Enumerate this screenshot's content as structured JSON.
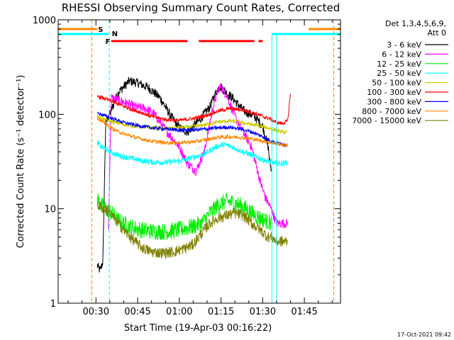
{
  "chart_data": {
    "type": "line",
    "title": "RHESSI Observing Summary Count Rates, Corrected",
    "xlabel": "Start Time (19-Apr-03 00:16:22)",
    "ylabel": "Corrected Count Rate (s⁻¹ detector⁻¹)",
    "yscale": "log",
    "ylim": [
      1,
      1000
    ],
    "xlim_minutes": [
      16.4,
      118.0
    ],
    "x_ticks": [
      {
        "t": 30,
        "label": "00:30"
      },
      {
        "t": 45,
        "label": "00:45"
      },
      {
        "t": 60,
        "label": "01:00"
      },
      {
        "t": 75,
        "label": "01:15"
      },
      {
        "t": 90,
        "label": "01:30"
      },
      {
        "t": 105,
        "label": "01:45"
      }
    ],
    "y_ticks": [
      {
        "v": 1,
        "label": "1"
      },
      {
        "v": 10,
        "label": "10"
      },
      {
        "v": 100,
        "label": "100"
      },
      {
        "v": 1000,
        "label": "1000"
      }
    ],
    "legend": {
      "header": [
        "Det 1,3,4,5,6,9,",
        "Att 0"
      ],
      "placement": "right"
    },
    "flag_labels": {
      "saa": "S",
      "night": "N",
      "flare": "F"
    },
    "flags": {
      "saa": [
        [
          16.4,
          30.5
        ],
        [
          106.5,
          118.0
        ]
      ],
      "night": [
        [
          16.4,
          34.5
        ],
        [
          93.3,
          118.0
        ]
      ],
      "flare": [
        [
          35.5,
          63.0
        ],
        [
          67.0,
          87.0
        ],
        [
          88.5,
          90.0
        ]
      ],
      "saa_boundaries": [
        28.5,
        115.6
      ],
      "night_boundaries": [
        34.8
      ],
      "night_solid_lines": [
        93.3,
        95.0
      ]
    },
    "series": [
      {
        "name": "3 - 6 keV",
        "color": "#000000",
        "noise": 0.05,
        "x": [
          30.5,
          31.5,
          32.5,
          33.5,
          34.5,
          35.5,
          38,
          42,
          45,
          49,
          53,
          57,
          60,
          63,
          67,
          71,
          73,
          74.5,
          76,
          79,
          83,
          87,
          90,
          92,
          92.5,
          93.2
        ],
        "y": [
          2.5,
          2.2,
          2.8,
          80,
          95,
          110,
          170,
          225,
          215,
          190,
          150,
          95,
          72,
          65,
          85,
          120,
          165,
          200,
          180,
          150,
          110,
          95,
          75,
          45,
          32,
          25
        ]
      },
      {
        "name": "6 - 12 keV",
        "color": "#ff00ff",
        "noise": 0.05,
        "x": [
          34.5,
          35.5,
          37,
          40,
          44,
          48,
          51,
          54,
          57,
          60,
          63,
          66,
          69,
          72,
          74,
          75,
          77,
          80,
          83,
          86,
          89,
          91,
          93,
          95,
          97.5,
          99
        ],
        "y": [
          6,
          150,
          145,
          135,
          120,
          115,
          100,
          75,
          58,
          45,
          30,
          25,
          40,
          115,
          185,
          195,
          160,
          95,
          65,
          45,
          20,
          13,
          10,
          7,
          7,
          7
        ]
      },
      {
        "name": "12 - 25 keV",
        "color": "#00ee00",
        "noise": 0.09,
        "x": [
          30.5,
          31.5,
          33.5,
          35.5,
          38,
          42,
          46,
          50,
          55,
          60,
          65,
          68,
          71,
          74,
          77,
          80,
          83,
          86,
          89,
          91,
          93.2
        ],
        "y": [
          13,
          11,
          10,
          9,
          7.5,
          6.5,
          6,
          5.8,
          5.7,
          6,
          6.5,
          7,
          9,
          11,
          12,
          11.5,
          10.5,
          9,
          8,
          7.5,
          7
        ]
      },
      {
        "name": "25 - 50 keV",
        "color": "#00ffff",
        "noise": 0.03,
        "x": [
          30.5,
          32,
          34,
          36,
          39,
          43,
          47,
          51,
          55,
          60,
          65,
          69,
          73,
          76,
          79,
          83,
          87,
          90,
          93.2,
          96,
          99
        ],
        "y": [
          50,
          45,
          42,
          39,
          36,
          34,
          32,
          31,
          31,
          32,
          35,
          38,
          45,
          48,
          45,
          40,
          36,
          33,
          31,
          30,
          31
        ]
      },
      {
        "name": "50 - 100 keV",
        "color": "#cccc00",
        "noise": 0.02,
        "x": [
          30.5,
          33,
          36,
          40,
          45,
          50,
          55,
          60,
          65,
          70,
          74,
          78,
          82,
          86,
          90,
          93.2,
          96,
          99
        ],
        "y": [
          95,
          88,
          83,
          78,
          74,
          72,
          71,
          72,
          74,
          78,
          83,
          85,
          82,
          78,
          74,
          70,
          66,
          64
        ]
      },
      {
        "name": "100 - 300 keV",
        "color": "#ff0000",
        "noise": 0.02,
        "x": [
          30.5,
          32,
          35,
          38,
          42,
          46,
          50,
          55,
          60,
          65,
          70,
          74,
          78,
          82,
          86,
          90,
          93.2,
          95,
          97,
          99,
          100
        ],
        "y": [
          155,
          150,
          140,
          128,
          115,
          105,
          95,
          88,
          86,
          90,
          98,
          108,
          115,
          112,
          105,
          95,
          88,
          82,
          80,
          85,
          170
        ]
      },
      {
        "name": "300 - 800 keV",
        "color": "#0000ff",
        "noise": 0.02,
        "x": [
          30.5,
          33,
          36,
          40,
          45,
          50,
          55,
          60,
          65,
          70,
          74,
          78,
          82,
          86,
          90,
          93.2,
          96,
          99
        ],
        "y": [
          103,
          97,
          90,
          82,
          76,
          72,
          70,
          68,
          68,
          70,
          72,
          73,
          70,
          65,
          58,
          52,
          49,
          47
        ]
      },
      {
        "name": "800 - 7000 keV",
        "color": "#ff8800",
        "noise": 0.02,
        "x": [
          30.5,
          33,
          36,
          40,
          45,
          50,
          55,
          60,
          65,
          70,
          74,
          78,
          82,
          86,
          90,
          93.2,
          96,
          99
        ],
        "y": [
          92,
          80,
          70,
          62,
          56,
          52,
          50,
          50,
          51,
          54,
          57,
          58,
          57,
          55,
          52,
          50,
          48,
          47
        ]
      },
      {
        "name": "7000 - 15000 keV",
        "color": "#808000",
        "noise": 0.06,
        "x": [
          30.5,
          33,
          35,
          38,
          41,
          44,
          47,
          50,
          54,
          58,
          62,
          65,
          68,
          71,
          74,
          77,
          80,
          83,
          86,
          89,
          92,
          93.2,
          95,
          97,
          99
        ],
        "y": [
          11,
          10,
          9,
          7,
          5.5,
          4.5,
          3.8,
          3.5,
          3.4,
          3.5,
          3.8,
          4.2,
          5.5,
          7,
          8,
          8.5,
          9,
          8.5,
          7,
          6,
          5,
          5,
          4.5,
          4.5,
          4.5
        ]
      }
    ]
  },
  "footer_date": "17-Oct-2021 09:42"
}
